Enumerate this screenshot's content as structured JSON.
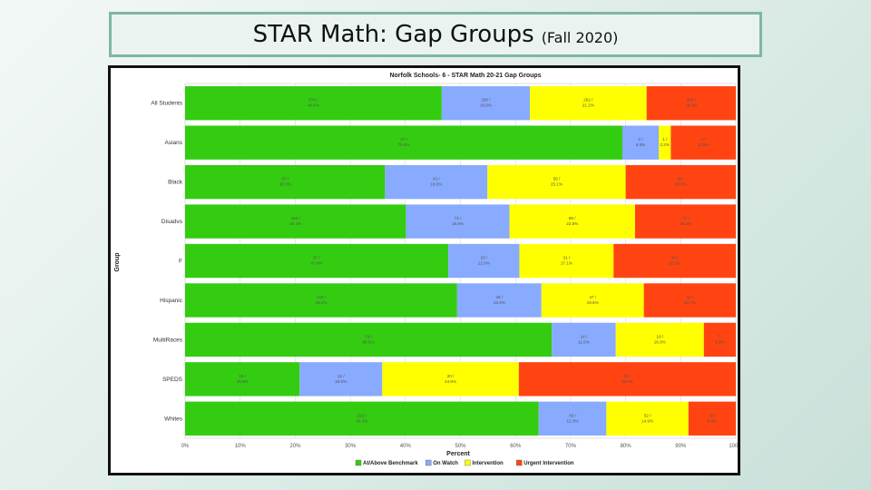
{
  "slide": {
    "title": "STAR Math: Gap Groups",
    "subtitle": "(Fall 2020)"
  },
  "chart_data": {
    "type": "bar",
    "orientation": "horizontal",
    "stacked": true,
    "title": "Norfolk Schools- 6 - STAR Math 20-21 Gap Groups",
    "xlabel": "Percent",
    "ylabel": "Group",
    "xlim": [
      0,
      100
    ],
    "x_ticks": [
      "0%",
      "10%",
      "20%",
      "30%",
      "40%",
      "50%",
      "60%",
      "70%",
      "80%",
      "90%",
      "100%"
    ],
    "grid": true,
    "legend_position": "bottom",
    "categories": [
      "All Students",
      "Asians",
      "Black",
      "Disadvs",
      "F",
      "Hispanic",
      "MultiRaces",
      "SPEDS",
      "Whites"
    ],
    "series": [
      {
        "name": "At/Above Benchmark",
        "color": "#33cc11",
        "values": [
          46.6,
          79.4,
          36.3,
          40.1,
          47.8,
          49.4,
          66.6,
          20.8,
          64.2
        ],
        "labels": [
          "574 / 46.6%",
          "27 / 79.4%",
          "87 / 36.3%",
          "156 / 40.1%",
          "87 / 47.8%",
          "124 / 49.4%",
          "79 / 66.6%",
          "16 / 20.8%",
          "223 / 64.2%"
        ]
      },
      {
        "name": "On Watch",
        "color": "#88aaff",
        "values": [
          16.0,
          6.6,
          18.6,
          18.8,
          12.9,
          15.3,
          11.6,
          15.0,
          12.3
        ],
        "labels": [
          "200 / 16.0%",
          "2 / 6.6%",
          "43 / 18.6%",
          "73 / 18.8%",
          "23 / 12.9%",
          "38 / 15.3%",
          "14 / 11.6%",
          "12 / 15.0%",
          "43 / 12.3%"
        ]
      },
      {
        "name": "Intervention",
        "color": "#ffff00",
        "values": [
          21.2,
          2.2,
          25.1,
          22.8,
          17.1,
          18.6,
          16.0,
          24.8,
          14.9
        ],
        "labels": [
          "262 / 21.2%",
          "1 / 2.2%",
          "58 / 25.1%",
          "89 / 22.8%",
          "31 / 17.1%",
          "47 / 18.6%",
          "19 / 16.0%",
          "20 / 24.8%",
          "52 / 14.9%"
        ]
      },
      {
        "name": "Urgent Intervention",
        "color": "#ff4411",
        "values": [
          16.2,
          11.8,
          20.0,
          18.3,
          22.2,
          16.7,
          5.8,
          39.4,
          8.6
        ],
        "labels": [
          "200 / 16.2%",
          "4 / 11.8%",
          "46 / 20.0%",
          "71 / 18.3%",
          "40 / 22.2%",
          "42 / 16.7%",
          "7 / 5.8%",
          "32 / 39.4%",
          "30 / 8.6%"
        ]
      }
    ]
  }
}
